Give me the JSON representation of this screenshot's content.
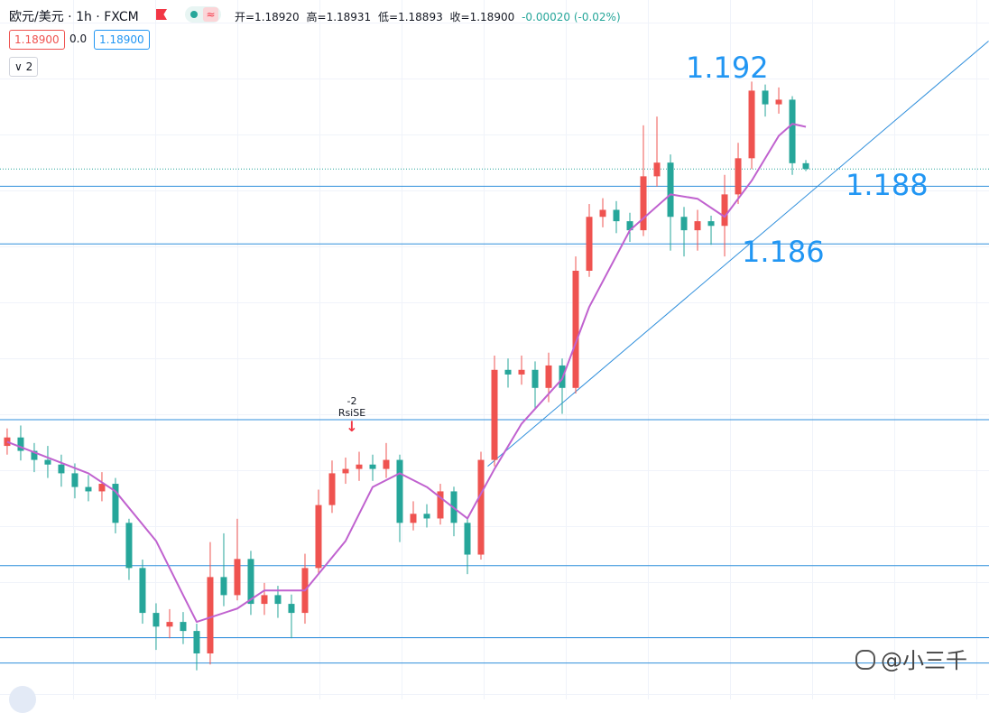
{
  "chart_data": {
    "type": "candlestick",
    "title": "欧元/美元 · 1h · FXCM",
    "ohlc_text": [
      "开=1.18920",
      "高=1.18931",
      "低=1.18893",
      "收=1.18900",
      "-0.00020 (-0.02%)"
    ],
    "badges": [
      "1.18900",
      "0.0",
      "1.18900"
    ],
    "collapse": "2",
    "annotations": [
      "1.192",
      "1.188",
      "1.186"
    ],
    "signal": [
      "-2",
      "RsiSE"
    ],
    "watermark": "@小三千",
    "up_color": "#ef5350",
    "down_color": "#26a69a",
    "line_color": "#2f8fdc",
    "ma_color": "#c062cf",
    "xlim": [
      -0.53,
      72.53
    ],
    "ylim": [
      1.1708,
      1.1948
    ],
    "open": [
      1.1795,
      1.17979,
      1.17933,
      1.17902,
      1.17886,
      1.17856,
      1.17809,
      1.17794,
      1.1782,
      1.17686,
      1.17531,
      1.17377,
      1.1733,
      1.17346,
      1.17315,
      1.17238,
      1.175,
      1.17438,
      1.17562,
      1.17408,
      1.17438,
      1.17408,
      1.17377,
      1.17531,
      1.17747,
      1.17856,
      1.17871,
      1.17886,
      1.17871,
      1.17902,
      1.17686,
      1.17717,
      1.17701,
      1.17794,
      1.17686,
      1.17577,
      1.17902,
      1.18211,
      1.18195,
      1.18211,
      1.18149,
      1.18226,
      1.18149,
      1.18551,
      1.18736,
      1.1876,
      1.18721,
      1.1869,
      1.18875,
      1.18922,
      1.18736,
      1.1869,
      1.18721,
      1.18705,
      1.18813,
      1.18937,
      1.19169,
      1.19122,
      1.19138,
      1.1892
    ],
    "high": [
      1.1801,
      1.1802,
      1.1796,
      1.1795,
      1.1792,
      1.1789,
      1.1785,
      1.1786,
      1.1784,
      1.177,
      1.1756,
      1.1741,
      1.1739,
      1.1738,
      1.1734,
      1.1762,
      1.1765,
      1.177,
      1.1759,
      1.1748,
      1.1747,
      1.1744,
      1.1758,
      1.178,
      1.179,
      1.1791,
      1.1793,
      1.1792,
      1.1796,
      1.1792,
      1.1776,
      1.1775,
      1.1782,
      1.1781,
      1.177,
      1.1793,
      1.1826,
      1.1825,
      1.1826,
      1.1824,
      1.1827,
      1.1825,
      1.186,
      1.1878,
      1.188,
      1.1879,
      1.1875,
      1.1905,
      1.1908,
      1.1895,
      1.1877,
      1.1876,
      1.1874,
      1.1888,
      1.1899,
      1.192,
      1.1919,
      1.1918,
      1.1915,
      1.18931
    ],
    "low": [
      1.1792,
      1.179,
      1.1786,
      1.1784,
      1.1781,
      1.1777,
      1.1776,
      1.1776,
      1.1765,
      1.1749,
      1.1734,
      1.1725,
      1.1729,
      1.1727,
      1.1718,
      1.172,
      1.174,
      1.1742,
      1.1737,
      1.1737,
      1.1736,
      1.1729,
      1.1734,
      1.1751,
      1.1772,
      1.1782,
      1.1783,
      1.1783,
      1.1784,
      1.1762,
      1.1766,
      1.1767,
      1.1768,
      1.1764,
      1.1751,
      1.1756,
      1.1788,
      1.1815,
      1.1816,
      1.1808,
      1.181,
      1.1806,
      1.1813,
      1.1853,
      1.187,
      1.1868,
      1.1865,
      1.1867,
      1.1884,
      1.1862,
      1.186,
      1.1862,
      1.1864,
      1.186,
      1.1878,
      1.189,
      1.1908,
      1.1909,
      1.1888,
      1.18893
    ],
    "close": [
      1.17979,
      1.17933,
      1.17902,
      1.17886,
      1.17856,
      1.17809,
      1.17794,
      1.1782,
      1.17686,
      1.17531,
      1.17377,
      1.1733,
      1.17346,
      1.17315,
      1.17238,
      1.175,
      1.17438,
      1.17562,
      1.17408,
      1.17438,
      1.17408,
      1.17377,
      1.17531,
      1.17747,
      1.17856,
      1.17871,
      1.17886,
      1.17871,
      1.17902,
      1.17686,
      1.17717,
      1.17701,
      1.17794,
      1.17686,
      1.17577,
      1.17902,
      1.18211,
      1.18195,
      1.18211,
      1.18149,
      1.18226,
      1.18149,
      1.18551,
      1.18736,
      1.1876,
      1.18721,
      1.1869,
      1.18875,
      1.18922,
      1.18736,
      1.1869,
      1.18721,
      1.18705,
      1.18813,
      1.18937,
      1.19169,
      1.19122,
      1.19138,
      1.1892,
      1.189
    ],
    "ma": {
      "x": [
        0,
        6,
        8,
        11,
        13,
        14,
        17,
        19,
        22,
        25,
        27,
        29,
        31,
        34,
        36,
        38,
        41,
        43,
        46,
        49,
        51,
        53,
        55,
        57,
        58,
        59
      ],
      "values": [
        1.17964,
        1.17856,
        1.17794,
        1.17624,
        1.17438,
        1.17346,
        1.17392,
        1.17454,
        1.17454,
        1.17624,
        1.17809,
        1.17856,
        1.17809,
        1.17701,
        1.17871,
        1.18026,
        1.1818,
        1.18427,
        1.1869,
        1.18813,
        1.18798,
        1.18736,
        1.1886,
        1.19014,
        1.19055,
        1.19045
      ]
    },
    "trendline": {
      "x": [
        35.5,
        72.5
      ],
      "values": [
        1.1788,
        1.19339
      ]
    },
    "levels": [
      1.18841,
      1.18643,
      1.1804,
      1.17539,
      1.17292,
      1.17205
    ]
  }
}
